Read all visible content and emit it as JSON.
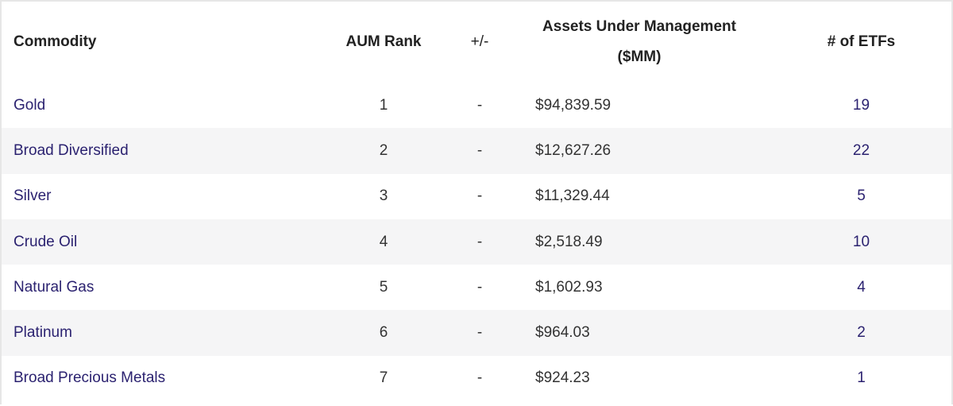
{
  "table": {
    "headers": {
      "commodity": "Commodity",
      "rank": "AUM Rank",
      "change": "+/-",
      "aum_line1": "Assets Under Management",
      "aum_line2": "($MM)",
      "count": "# of ETFs"
    },
    "rows": [
      {
        "commodity": "Gold",
        "rank": "1",
        "change": "-",
        "aum": "$94,839.59",
        "count": "19"
      },
      {
        "commodity": "Broad Diversified",
        "rank": "2",
        "change": "-",
        "aum": "$12,627.26",
        "count": "22"
      },
      {
        "commodity": "Silver",
        "rank": "3",
        "change": "-",
        "aum": "$11,329.44",
        "count": "5"
      },
      {
        "commodity": "Crude Oil",
        "rank": "4",
        "change": "-",
        "aum": "$2,518.49",
        "count": "10"
      },
      {
        "commodity": "Natural Gas",
        "rank": "5",
        "change": "-",
        "aum": "$1,602.93",
        "count": "4"
      },
      {
        "commodity": "Platinum",
        "rank": "6",
        "change": "-",
        "aum": "$964.03",
        "count": "2"
      },
      {
        "commodity": "Broad Precious Metals",
        "rank": "7",
        "change": "-",
        "aum": "$924.23",
        "count": "1"
      }
    ]
  },
  "colors": {
    "link": "#2b2270",
    "stripe": "#f5f5f6",
    "border": "#e6e6e6"
  }
}
